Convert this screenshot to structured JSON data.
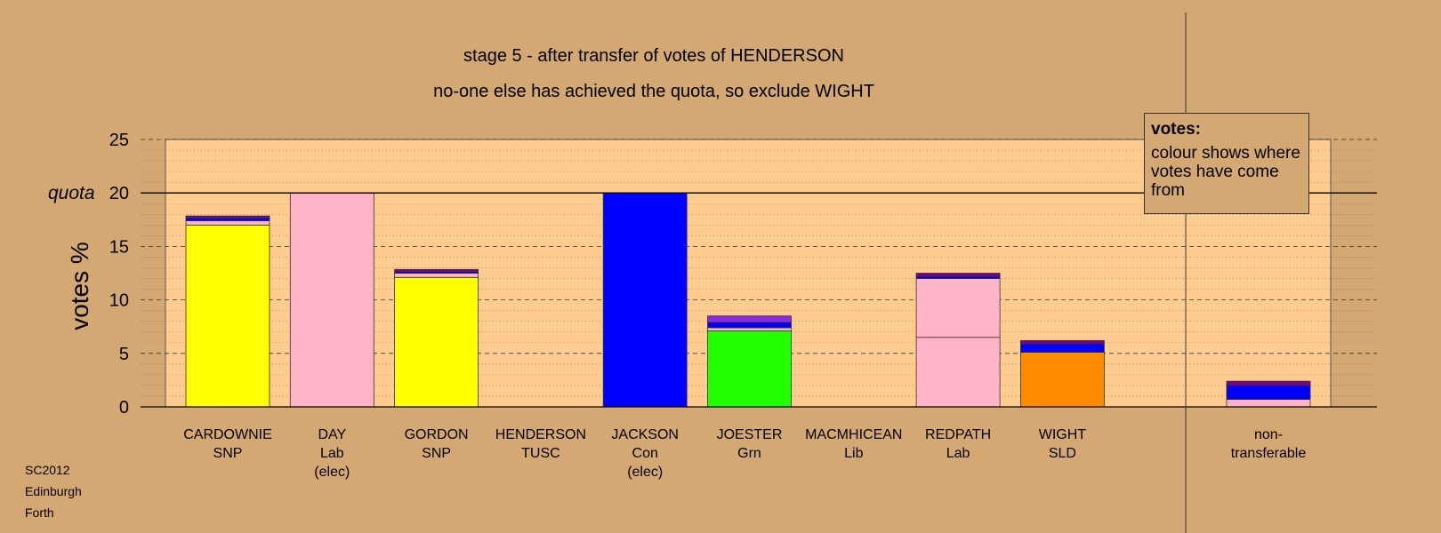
{
  "chart_data": {
    "type": "bar",
    "stacked": true,
    "title": "stage 5 - after transfer of votes of HENDERSON",
    "subtitle": "no-one else has achieved the quota, so exclude WIGHT",
    "ylabel": "votes %",
    "quota_label": "quota",
    "quota": 20,
    "ylim": [
      0,
      25
    ],
    "yticks": [
      0,
      5,
      10,
      15,
      20,
      25
    ],
    "grid": true,
    "categories": [
      {
        "name": "CARDOWNIE",
        "party": "SNP",
        "note": ""
      },
      {
        "name": "DAY",
        "party": "Lab",
        "note": "(elec)"
      },
      {
        "name": "GORDON",
        "party": "SNP",
        "note": ""
      },
      {
        "name": "HENDERSON",
        "party": "TUSC",
        "note": ""
      },
      {
        "name": "JACKSON",
        "party": "Con",
        "note": "(elec)"
      },
      {
        "name": "JOESTER",
        "party": "Grn",
        "note": ""
      },
      {
        "name": "MACMHICEAN",
        "party": "Lib",
        "note": ""
      },
      {
        "name": "REDPATH",
        "party": "Lab",
        "note": ""
      },
      {
        "name": "WIGHT",
        "party": "SLD",
        "note": ""
      },
      {
        "name": "non-",
        "party": "transferable",
        "note": ""
      }
    ],
    "bars": [
      {
        "segments": [
          {
            "value": 17.0,
            "color": "#FFFF00"
          },
          {
            "value": 0.4,
            "color": "#FFB3C6"
          },
          {
            "value": 0.25,
            "color": "#0000FF"
          },
          {
            "value": 0.2,
            "color": "#800080"
          }
        ]
      },
      {
        "segments": [
          {
            "value": 20.0,
            "color": "#FFB3C6"
          }
        ]
      },
      {
        "segments": [
          {
            "value": 12.1,
            "color": "#FFFF00"
          },
          {
            "value": 0.4,
            "color": "#FFB3C6"
          },
          {
            "value": 0.15,
            "color": "#0000FF"
          },
          {
            "value": 0.2,
            "color": "#800080"
          }
        ]
      },
      {
        "segments": []
      },
      {
        "segments": [
          {
            "value": 20.0,
            "color": "#0000FF"
          }
        ]
      },
      {
        "segments": [
          {
            "value": 7.1,
            "color": "#22FF00"
          },
          {
            "value": 0.3,
            "color": "#FFB3C6"
          },
          {
            "value": 0.5,
            "color": "#0000FF"
          },
          {
            "value": 0.6,
            "color": "#8A2BE2"
          }
        ]
      },
      {
        "segments": []
      },
      {
        "segments": [
          {
            "value": 6.5,
            "color": "#FFB3C6"
          },
          {
            "value": 5.5,
            "color": "#FFB3C6"
          },
          {
            "value": 0.2,
            "color": "#0000FF"
          },
          {
            "value": 0.3,
            "color": "#800080"
          }
        ]
      },
      {
        "segments": [
          {
            "value": 5.1,
            "color": "#FF8C00"
          },
          {
            "value": 0.8,
            "color": "#0000FF"
          },
          {
            "value": 0.3,
            "color": "#800080"
          }
        ]
      },
      {
        "segments": [
          {
            "value": 0.7,
            "color": "#FFB3C6"
          },
          {
            "value": 1.3,
            "color": "#0000FF"
          },
          {
            "value": 0.4,
            "color": "#800080"
          }
        ]
      }
    ],
    "colors": {
      "background": "#D4A873",
      "plot_area": "#FFCC8F"
    }
  },
  "legend": {
    "title": "votes:",
    "body": "colour shows where votes have come from"
  },
  "footer": {
    "line1": "SC2012",
    "line2": "Edinburgh",
    "line3": "Forth"
  }
}
